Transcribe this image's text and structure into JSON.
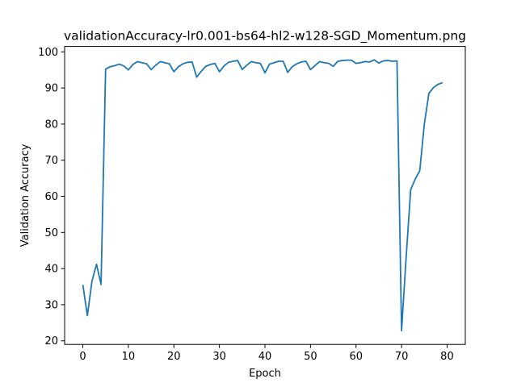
{
  "chart_data": {
    "type": "line",
    "title": "validationAccuracy-lr0.001-bs64-hl2-w128-SGD_Momentum.png",
    "xlabel": "Epoch",
    "ylabel": "Validation Accuracy",
    "xlim": [
      -4,
      84
    ],
    "ylim": [
      19,
      101.5
    ],
    "xticks": [
      0,
      10,
      20,
      30,
      40,
      50,
      60,
      70,
      80
    ],
    "yticks": [
      20,
      30,
      40,
      50,
      60,
      70,
      80,
      90,
      100
    ],
    "grid": false,
    "legend": "none",
    "line_color": "#1f77b4",
    "series": [
      {
        "x": [
          0,
          1,
          2,
          3,
          4,
          5,
          6,
          7,
          8,
          9,
          10,
          11,
          12,
          13,
          14,
          15,
          16,
          17,
          18,
          19,
          20,
          21,
          22,
          23,
          24,
          25,
          26,
          27,
          28,
          29,
          30,
          31,
          32,
          33,
          34,
          35,
          36,
          37,
          38,
          39,
          40,
          41,
          42,
          43,
          44,
          45,
          46,
          47,
          48,
          49,
          50,
          51,
          52,
          53,
          54,
          55,
          56,
          57,
          58,
          59,
          60,
          61,
          62,
          63,
          64,
          65,
          66,
          67,
          68,
          69,
          70,
          71,
          72,
          73,
          74,
          75,
          76,
          77,
          78,
          79
        ],
        "values": [
          35.5,
          27.0,
          36.5,
          41.2,
          35.6,
          95.2,
          95.9,
          96.2,
          96.6,
          96.1,
          95.0,
          96.5,
          97.3,
          97.0,
          96.7,
          95.1,
          96.3,
          97.3,
          97.0,
          96.7,
          94.5,
          95.9,
          96.7,
          97.1,
          97.2,
          93.0,
          94.6,
          96.0,
          96.5,
          96.8,
          94.5,
          96.1,
          97.1,
          97.4,
          97.6,
          95.1,
          96.3,
          97.3,
          97.0,
          96.8,
          94.2,
          96.6,
          97.0,
          97.4,
          97.4,
          94.3,
          95.9,
          96.7,
          97.2,
          97.4,
          95.1,
          96.2,
          97.3,
          97.0,
          96.8,
          96.0,
          97.4,
          97.6,
          97.7,
          97.7,
          96.8,
          97.0,
          97.3,
          97.2,
          97.8,
          96.9,
          97.5,
          97.6,
          97.4,
          97.5,
          22.8,
          43.0,
          61.8,
          64.8,
          67.1,
          80.0,
          88.5,
          90.1,
          91.0,
          91.5
        ]
      }
    ]
  }
}
